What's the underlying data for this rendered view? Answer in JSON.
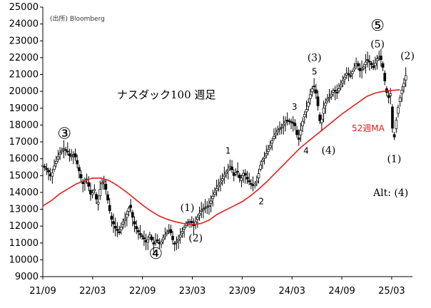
{
  "source": "(出所) Bloomberg",
  "chart_data": {
    "type": "candlestick",
    "title": "ナスダック100 週足",
    "ylim": [
      9000,
      25000
    ],
    "y_ticks": [
      9000,
      10000,
      11000,
      12000,
      13000,
      14000,
      15000,
      16000,
      17000,
      18000,
      19000,
      20000,
      21000,
      22000,
      23000,
      24000,
      25000
    ],
    "x_ticks": [
      {
        "label": "21/09",
        "t": 0
      },
      {
        "label": "22/03",
        "t": 6
      },
      {
        "label": "22/09",
        "t": 12
      },
      {
        "label": "23/03",
        "t": 18
      },
      {
        "label": "23/09",
        "t": 24
      },
      {
        "label": "24/03",
        "t": 30
      },
      {
        "label": "24/09",
        "t": 36
      },
      {
        "label": "25/03",
        "t": 42
      }
    ],
    "price_path": [
      [
        0,
        15600
      ],
      [
        0.6,
        15300
      ],
      [
        1.0,
        14900
      ],
      [
        1.4,
        15600
      ],
      [
        2.0,
        16300
      ],
      [
        2.5,
        16600
      ],
      [
        3.0,
        16400
      ],
      [
        3.3,
        16100
      ],
      [
        3.8,
        16300
      ],
      [
        4.3,
        15400
      ],
      [
        4.8,
        14500
      ],
      [
        5.3,
        14800
      ],
      [
        5.8,
        13800
      ],
      [
        6.2,
        14200
      ],
      [
        6.6,
        13200
      ],
      [
        7.0,
        14500
      ],
      [
        7.4,
        14700
      ],
      [
        7.8,
        13600
      ],
      [
        8.2,
        12500
      ],
      [
        8.7,
        11900
      ],
      [
        9.2,
        11600
      ],
      [
        9.6,
        12200
      ],
      [
        10.0,
        12500
      ],
      [
        10.5,
        13300
      ],
      [
        10.9,
        12300
      ],
      [
        11.3,
        11800
      ],
      [
        11.7,
        11500
      ],
      [
        12.1,
        11300
      ],
      [
        12.5,
        11000
      ],
      [
        12.9,
        11500
      ],
      [
        13.3,
        10900
      ],
      [
        13.7,
        11200
      ],
      [
        14.1,
        10900
      ],
      [
        14.5,
        11300
      ],
      [
        14.9,
        11600
      ],
      [
        15.3,
        11800
      ],
      [
        15.8,
        10900
      ],
      [
        16.3,
        11200
      ],
      [
        16.8,
        11700
      ],
      [
        17.3,
        12200
      ],
      [
        17.8,
        12300
      ],
      [
        18.2,
        12000
      ],
      [
        18.6,
        12500
      ],
      [
        19.0,
        12900
      ],
      [
        19.5,
        13100
      ],
      [
        20.0,
        13200
      ],
      [
        20.5,
        13800
      ],
      [
        21.0,
        14300
      ],
      [
        21.4,
        14600
      ],
      [
        21.8,
        15000
      ],
      [
        22.2,
        15300
      ],
      [
        22.6,
        15600
      ],
      [
        23.0,
        15000
      ],
      [
        23.4,
        15300
      ],
      [
        23.8,
        14700
      ],
      [
        24.2,
        15200
      ],
      [
        24.6,
        14800
      ],
      [
        25.0,
        14500
      ],
      [
        25.4,
        14400
      ],
      [
        25.8,
        14700
      ],
      [
        26.3,
        15800
      ],
      [
        26.8,
        16200
      ],
      [
        27.3,
        16700
      ],
      [
        27.8,
        17300
      ],
      [
        28.3,
        17700
      ],
      [
        28.8,
        17900
      ],
      [
        29.3,
        18300
      ],
      [
        29.8,
        18200
      ],
      [
        30.3,
        18100
      ],
      [
        30.6,
        17400
      ],
      [
        30.8,
        17100
      ],
      [
        31.1,
        17800
      ],
      [
        31.4,
        18500
      ],
      [
        31.8,
        19000
      ],
      [
        32.2,
        19800
      ],
      [
        32.6,
        20400
      ],
      [
        33.0,
        19700
      ],
      [
        33.3,
        18300
      ],
      [
        33.5,
        18100
      ],
      [
        33.8,
        19000
      ],
      [
        34.2,
        19500
      ],
      [
        34.6,
        19700
      ],
      [
        35.0,
        20100
      ],
      [
        35.4,
        19900
      ],
      [
        35.8,
        20300
      ],
      [
        36.2,
        20700
      ],
      [
        36.6,
        21100
      ],
      [
        37.0,
        20900
      ],
      [
        37.4,
        21300
      ],
      [
        37.8,
        21700
      ],
      [
        38.2,
        21200
      ],
      [
        38.6,
        21400
      ],
      [
        39.0,
        21900
      ],
      [
        39.4,
        21700
      ],
      [
        39.8,
        21400
      ],
      [
        40.2,
        21900
      ],
      [
        40.6,
        22100
      ],
      [
        41.0,
        21300
      ],
      [
        41.3,
        20100
      ],
      [
        41.6,
        19600
      ],
      [
        41.9,
        19900
      ],
      [
        42.1,
        17700
      ],
      [
        42.3,
        17200
      ],
      [
        42.6,
        18500
      ],
      [
        42.9,
        19400
      ],
      [
        43.2,
        20000
      ],
      [
        43.6,
        20700
      ],
      [
        43.9,
        21400
      ]
    ],
    "ma_path": [
      [
        0,
        13200
      ],
      [
        1,
        13500
      ],
      [
        2,
        13900
      ],
      [
        3,
        14200
      ],
      [
        4,
        14500
      ],
      [
        5,
        14700
      ],
      [
        6,
        14850
      ],
      [
        7,
        14850
      ],
      [
        8,
        14700
      ],
      [
        9,
        14400
      ],
      [
        10,
        14050
      ],
      [
        11,
        13650
      ],
      [
        12,
        13250
      ],
      [
        13,
        12900
      ],
      [
        14,
        12600
      ],
      [
        15,
        12400
      ],
      [
        16,
        12250
      ],
      [
        17,
        12150
      ],
      [
        18,
        12100
      ],
      [
        19,
        12150
      ],
      [
        20,
        12350
      ],
      [
        21,
        12700
      ],
      [
        22,
        12950
      ],
      [
        23,
        13200
      ],
      [
        24,
        13450
      ],
      [
        25,
        13800
      ],
      [
        26,
        14200
      ],
      [
        27,
        14650
      ],
      [
        28,
        15150
      ],
      [
        29,
        15650
      ],
      [
        30,
        16150
      ],
      [
        31,
        16650
      ],
      [
        32,
        17050
      ],
      [
        33,
        17450
      ],
      [
        34,
        17850
      ],
      [
        35,
        18250
      ],
      [
        36,
        18650
      ],
      [
        37,
        19000
      ],
      [
        38,
        19350
      ],
      [
        39,
        19700
      ],
      [
        40,
        19900
      ],
      [
        41,
        20000
      ],
      [
        42,
        20050
      ],
      [
        43,
        20100
      ]
    ],
    "annotations": [
      {
        "id": "wave3-circle",
        "text": "③",
        "t": 2.6,
        "y": 17200,
        "style": "wave-big"
      },
      {
        "id": "wave4-circle",
        "text": "④",
        "t": 13.6,
        "y": 10050,
        "style": "wave-big"
      },
      {
        "id": "wave5-circle",
        "text": "⑤",
        "t": 40.3,
        "y": 23600,
        "style": "wave-big"
      },
      {
        "id": "label-1-paren-low",
        "text": "(1)",
        "t": 17.4,
        "y": 12900,
        "style": "wave"
      },
      {
        "id": "label-2-paren-low",
        "text": "(2)",
        "t": 18.4,
        "y": 11100,
        "style": "wave"
      },
      {
        "id": "label-1-small",
        "text": "1",
        "t": 22.3,
        "y": 16300,
        "style": "wave-small"
      },
      {
        "id": "label-2-small",
        "text": "2",
        "t": 26.3,
        "y": 13300,
        "style": "wave-small"
      },
      {
        "id": "label-3-small",
        "text": "3",
        "t": 30.3,
        "y": 18900,
        "style": "wave-small"
      },
      {
        "id": "label-4-small",
        "text": "4",
        "t": 31.7,
        "y": 16300,
        "style": "wave-small"
      },
      {
        "id": "label-3-paren",
        "text": "(3)",
        "t": 32.7,
        "y": 21800,
        "style": "wave"
      },
      {
        "id": "label-5-small",
        "text": "5",
        "t": 32.7,
        "y": 21000,
        "style": "wave-small"
      },
      {
        "id": "label-4-paren",
        "text": "(4)",
        "t": 34.4,
        "y": 16300,
        "style": "wave"
      },
      {
        "id": "label-5-paren",
        "text": "(5)",
        "t": 40.3,
        "y": 22600,
        "style": "wave"
      },
      {
        "id": "label-2-paren-high",
        "text": "(2)",
        "t": 43.9,
        "y": 21900,
        "style": "wave"
      },
      {
        "id": "label-1-paren-high",
        "text": "(1)",
        "t": 42.3,
        "y": 15800,
        "style": "wave"
      }
    ],
    "ma_label": "52週MA",
    "alt_label": "Alt: (4)",
    "colors": {
      "candles": "#000000",
      "moving_average": "#e0201b",
      "axis": "#000000"
    }
  }
}
